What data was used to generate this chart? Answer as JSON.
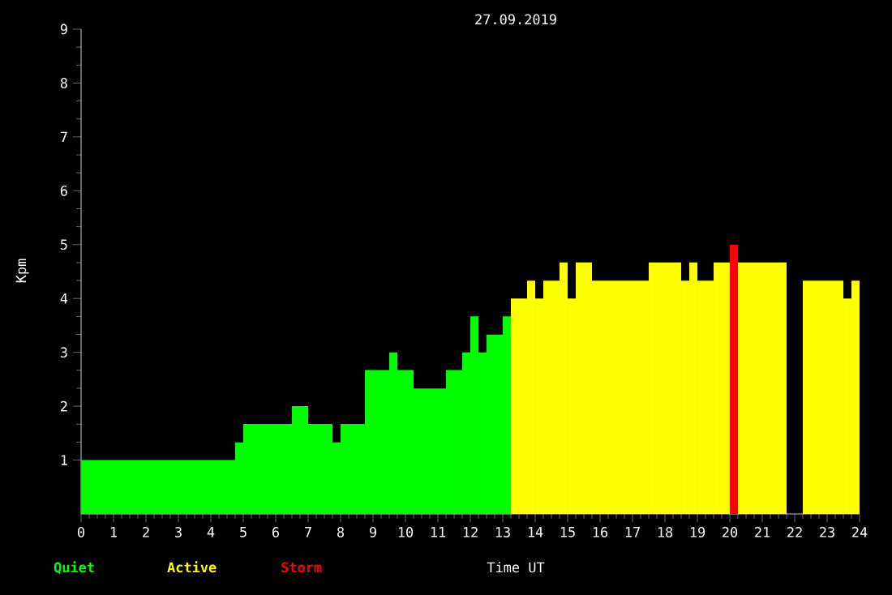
{
  "chart_data": {
    "type": "histogram",
    "title": "27.09.2019",
    "xlabel": "Time UT",
    "ylabel": "Kpm",
    "bins": [
      0,
      4.75,
      5.0,
      6.5,
      7.0,
      7.75,
      8.0,
      8.75,
      9.5,
      9.75,
      10.25,
      11.25,
      11.75,
      12.0,
      12.25,
      12.5,
      13.0,
      13.25,
      13.75,
      14.0,
      14.25,
      14.75,
      15.0,
      15.25,
      15.75,
      17.5,
      18.5,
      18.75,
      19.0,
      19.5,
      20.0,
      20.25,
      21.75,
      22.25,
      23.5,
      23.75,
      24
    ],
    "series": [
      {
        "name": "Quiet",
        "color": "#00ff00",
        "values": [
          1,
          1.33,
          1.67,
          2,
          1.67,
          1.33,
          1.67,
          2.67,
          3,
          2.67,
          2.33,
          2.67,
          3,
          3.67,
          3,
          3.33,
          3.67,
          null,
          null,
          null,
          null,
          null,
          null,
          null,
          null,
          null,
          null,
          null,
          null,
          null,
          null,
          null,
          null,
          null,
          null,
          null
        ]
      },
      {
        "name": "Active",
        "color": "#ffff00",
        "values": [
          null,
          null,
          null,
          null,
          null,
          null,
          null,
          null,
          null,
          null,
          null,
          null,
          null,
          null,
          null,
          null,
          null,
          4,
          4.33,
          4,
          4.33,
          4.67,
          4,
          4.67,
          4.33,
          4.67,
          4.33,
          4.67,
          4.33,
          4.67,
          null,
          4.67,
          null,
          4.33,
          4,
          4.33
        ]
      },
      {
        "name": "Storm",
        "color": "#ff0000",
        "values": [
          null,
          null,
          null,
          null,
          null,
          null,
          null,
          null,
          null,
          null,
          null,
          null,
          null,
          null,
          null,
          null,
          null,
          null,
          null,
          null,
          null,
          null,
          null,
          null,
          null,
          null,
          null,
          null,
          null,
          null,
          5,
          null,
          null,
          null,
          null,
          null
        ]
      }
    ],
    "xlim": [
      0,
      24
    ],
    "xticks": [
      0,
      1,
      2,
      3,
      4,
      5,
      6,
      7,
      8,
      9,
      10,
      11,
      12,
      13,
      14,
      15,
      16,
      17,
      18,
      19,
      20,
      21,
      22,
      23,
      24
    ],
    "ylim": [
      0,
      9
    ],
    "yticks": [
      1,
      2,
      3,
      4,
      5,
      6,
      7,
      8,
      9
    ],
    "legend": "bottom"
  }
}
